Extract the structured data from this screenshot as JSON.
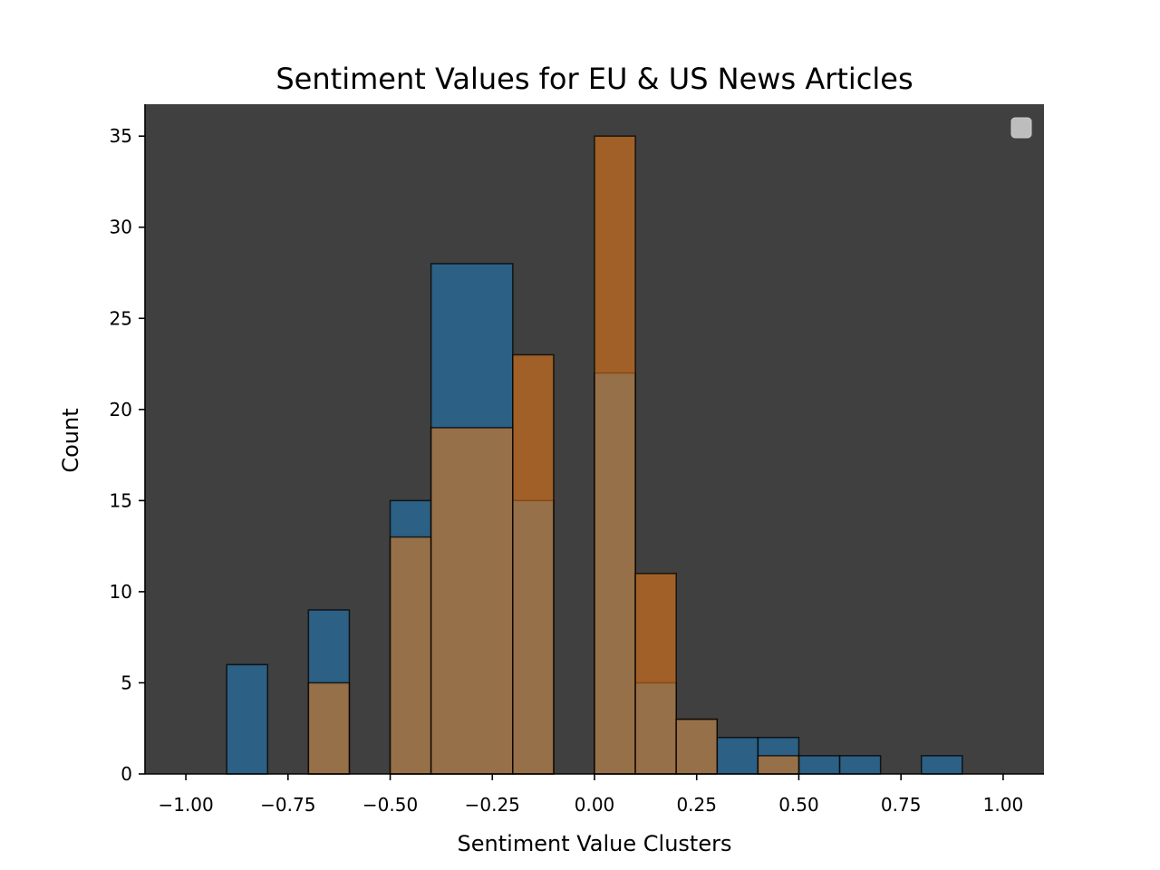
{
  "chart_data": {
    "type": "bar",
    "title": "Sentiment Values for EU & US News Articles",
    "xlabel": "Sentiment Value Clusters",
    "ylabel": "Count",
    "xlim": [
      -1.1,
      1.1
    ],
    "ylim": [
      0,
      36.75
    ],
    "xticks": [
      -1.0,
      -0.75,
      -0.5,
      -0.25,
      0.0,
      0.25,
      0.5,
      0.75,
      1.0
    ],
    "xtick_labels": [
      "−1.00",
      "−0.75",
      "−0.50",
      "−0.25",
      "0.00",
      "0.25",
      "0.50",
      "0.75",
      "1.00"
    ],
    "yticks": [
      0,
      5,
      10,
      15,
      20,
      25,
      30,
      35
    ],
    "ytick_labels": [
      "0",
      "5",
      "10",
      "15",
      "20",
      "25",
      "30",
      "35"
    ],
    "grid": false,
    "legend": {
      "placement": "top-right",
      "entries": []
    },
    "background_color": "#404040",
    "series": [
      {
        "color": "#1f77b4",
        "alpha": 0.6,
        "bins": [
          {
            "x0": -0.9,
            "x1": -0.8,
            "count": 6
          },
          {
            "x0": -0.7,
            "x1": -0.6,
            "count": 9
          },
          {
            "x0": -0.5,
            "x1": -0.4,
            "count": 15
          },
          {
            "x0": -0.4,
            "x1": -0.2,
            "count": 28
          },
          {
            "x0": -0.2,
            "x1": -0.1,
            "count": 15
          },
          {
            "x0": 0.0,
            "x1": 0.1,
            "count": 22
          },
          {
            "x0": 0.1,
            "x1": 0.2,
            "count": 5
          },
          {
            "x0": 0.2,
            "x1": 0.3,
            "count": 3
          },
          {
            "x0": 0.3,
            "x1": 0.4,
            "count": 2
          },
          {
            "x0": 0.4,
            "x1": 0.5,
            "count": 2
          },
          {
            "x0": 0.5,
            "x1": 0.6,
            "count": 1
          },
          {
            "x0": 0.6,
            "x1": 0.7,
            "count": 1
          },
          {
            "x0": 0.8,
            "x1": 0.9,
            "count": 1
          }
        ]
      },
      {
        "color": "#ff7f0e",
        "alpha": 0.5,
        "bins": [
          {
            "x0": -0.7,
            "x1": -0.6,
            "count": 5
          },
          {
            "x0": -0.5,
            "x1": -0.4,
            "count": 13
          },
          {
            "x0": -0.4,
            "x1": -0.2,
            "count": 19
          },
          {
            "x0": -0.2,
            "x1": -0.1,
            "count": 23
          },
          {
            "x0": 0.0,
            "x1": 0.1,
            "count": 35
          },
          {
            "x0": 0.1,
            "x1": 0.2,
            "count": 11
          },
          {
            "x0": 0.2,
            "x1": 0.3,
            "count": 3
          },
          {
            "x0": 0.4,
            "x1": 0.5,
            "count": 1
          }
        ]
      }
    ]
  }
}
